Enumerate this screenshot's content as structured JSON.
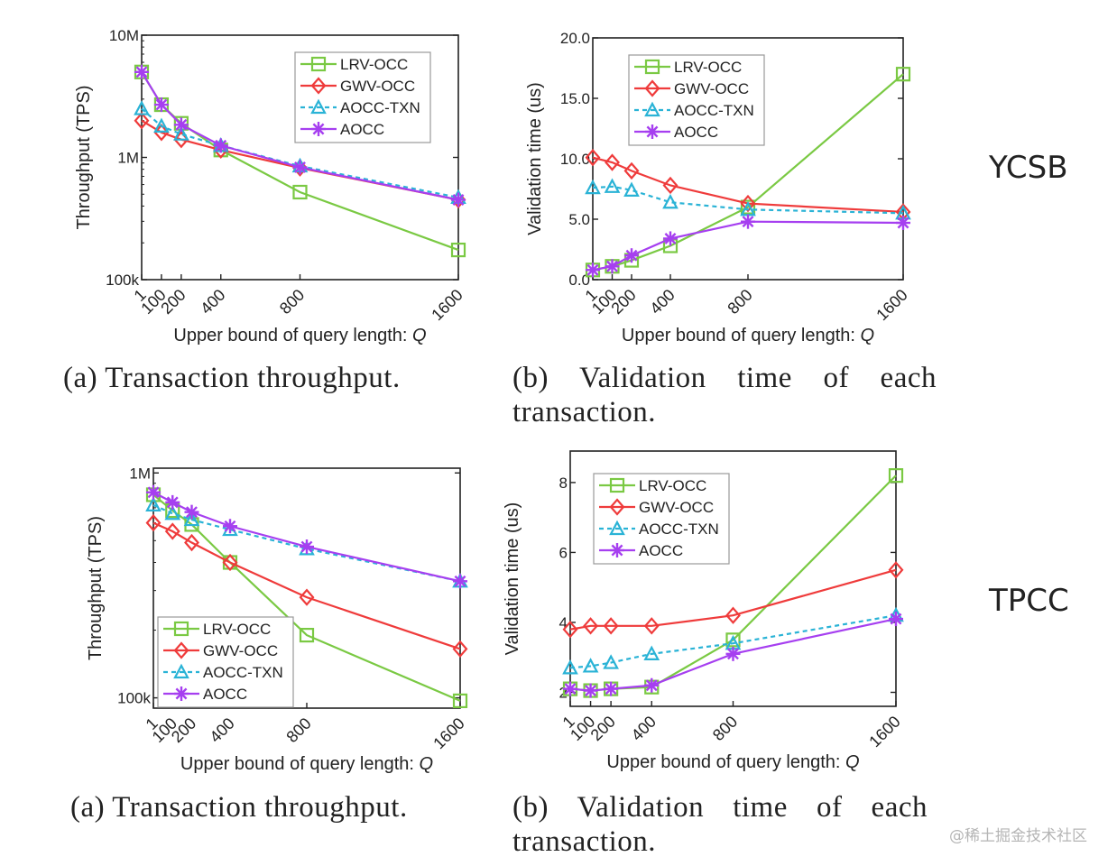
{
  "rows": [
    {
      "label": "YCSB"
    },
    {
      "label": "TPCC"
    }
  ],
  "captions": {
    "a_top": "(a) Transaction throughput.",
    "b_top_1": "(b) Validation time of each",
    "b_top_2": "transaction.",
    "a_bottom": "(a) Transaction throughput.",
    "b_bottom_1": "(b) Validation time of each",
    "b_bottom_2": "transaction."
  },
  "watermark": "@稀土掘金技术社区",
  "series_style": [
    {
      "name": "LRV-OCC",
      "color": "#7ac943",
      "marker": "square",
      "dash": false
    },
    {
      "name": "GWV-OCC",
      "color": "#ef3b3b",
      "marker": "diamond",
      "dash": false
    },
    {
      "name": "AOCC-TXN",
      "color": "#2ab3d6",
      "marker": "triangle",
      "dash": true
    },
    {
      "name": "AOCC",
      "color": "#a63ff0",
      "marker": "asterisk",
      "dash": false
    }
  ],
  "chart_data": [
    {
      "id": "ycsb-throughput",
      "type": "line",
      "xlabel": "Upper bound of query length: Q",
      "ylabel": "Throughput (TPS)",
      "yscale": "log",
      "ylim": [
        100000,
        10000000
      ],
      "yticks": [
        100000,
        1000000,
        10000000
      ],
      "yticklabels": [
        "100k",
        "1M",
        "10M"
      ],
      "xlim": [
        1,
        1600
      ],
      "x": [
        1,
        100,
        200,
        400,
        800,
        1600
      ],
      "xticklabels": [
        "1",
        "100",
        "200",
        "400",
        "800",
        "1600"
      ],
      "legend": "top-right",
      "series": [
        {
          "name": "LRV-OCC",
          "values": [
            5000000,
            2700000,
            1900000,
            1150000,
            520000,
            175000
          ]
        },
        {
          "name": "GWV-OCC",
          "values": [
            2000000,
            1600000,
            1400000,
            1150000,
            820000,
            450000
          ]
        },
        {
          "name": "AOCC-TXN",
          "values": [
            2500000,
            1800000,
            1550000,
            1250000,
            850000,
            470000
          ]
        },
        {
          "name": "AOCC",
          "values": [
            5000000,
            2700000,
            1850000,
            1250000,
            830000,
            450000
          ]
        }
      ]
    },
    {
      "id": "ycsb-validation",
      "type": "line",
      "xlabel": "Upper bound of query length: Q",
      "ylabel": "Validation time (us)",
      "yscale": "linear",
      "ylim": [
        0,
        20
      ],
      "yticks": [
        0,
        5,
        10,
        15,
        20
      ],
      "yticklabels": [
        "0.0",
        "5.0",
        "10.0",
        "15.0",
        "20.0"
      ],
      "xlim": [
        1,
        1600
      ],
      "x": [
        1,
        100,
        200,
        400,
        800,
        1600
      ],
      "xticklabels": [
        "1",
        "100",
        "200",
        "400",
        "800",
        "1600"
      ],
      "legend": "top-left",
      "series": [
        {
          "name": "LRV-OCC",
          "values": [
            0.8,
            1.1,
            1.6,
            2.8,
            6.0,
            17.0
          ]
        },
        {
          "name": "GWV-OCC",
          "values": [
            10.1,
            9.7,
            9.0,
            7.8,
            6.3,
            5.6
          ]
        },
        {
          "name": "AOCC-TXN",
          "values": [
            7.6,
            7.7,
            7.4,
            6.4,
            5.8,
            5.5
          ]
        },
        {
          "name": "AOCC",
          "values": [
            0.8,
            1.1,
            2.0,
            3.4,
            4.8,
            4.7
          ]
        }
      ]
    },
    {
      "id": "tpcc-throughput",
      "type": "line",
      "xlabel": "Upper bound of query length: Q",
      "ylabel": "Throughput (TPS)",
      "yscale": "log",
      "ylim": [
        90000,
        1050000
      ],
      "yticks": [
        100000,
        1000000
      ],
      "yticklabels": [
        "100k",
        "1M"
      ],
      "xlim": [
        1,
        1600
      ],
      "x": [
        1,
        100,
        200,
        400,
        800,
        1600
      ],
      "xticklabels": [
        "1",
        "100",
        "200",
        "400",
        "800",
        "1600"
      ],
      "legend": "bottom-left",
      "series": [
        {
          "name": "LRV-OCC",
          "values": [
            800000,
            680000,
            590000,
            400000,
            190000,
            97000
          ]
        },
        {
          "name": "GWV-OCC",
          "values": [
            600000,
            550000,
            490000,
            400000,
            280000,
            165000
          ]
        },
        {
          "name": "AOCC-TXN",
          "values": [
            720000,
            660000,
            620000,
            560000,
            460000,
            330000
          ]
        },
        {
          "name": "AOCC",
          "values": [
            820000,
            740000,
            670000,
            580000,
            470000,
            330000
          ]
        }
      ]
    },
    {
      "id": "tpcc-validation",
      "type": "line",
      "xlabel": "Upper bound of query length: Q",
      "ylabel": "Validation time (us)",
      "yscale": "linear",
      "ylim": [
        1.6,
        8.9
      ],
      "yticks": [
        2,
        4,
        6,
        8
      ],
      "yticklabels": [
        "2",
        "4",
        "6",
        "8"
      ],
      "xlim": [
        1,
        1600
      ],
      "x": [
        1,
        100,
        200,
        400,
        800,
        1600
      ],
      "xticklabels": [
        "1",
        "100",
        "200",
        "400",
        "800",
        "1600"
      ],
      "legend": "top-left",
      "series": [
        {
          "name": "LRV-OCC",
          "values": [
            2.1,
            2.05,
            2.1,
            2.15,
            3.5,
            8.2
          ]
        },
        {
          "name": "GWV-OCC",
          "values": [
            3.8,
            3.9,
            3.9,
            3.9,
            4.2,
            5.5
          ]
        },
        {
          "name": "AOCC-TXN",
          "values": [
            2.7,
            2.75,
            2.85,
            3.1,
            3.4,
            4.2
          ]
        },
        {
          "name": "AOCC",
          "values": [
            2.1,
            2.05,
            2.1,
            2.2,
            3.1,
            4.1
          ]
        }
      ]
    }
  ]
}
